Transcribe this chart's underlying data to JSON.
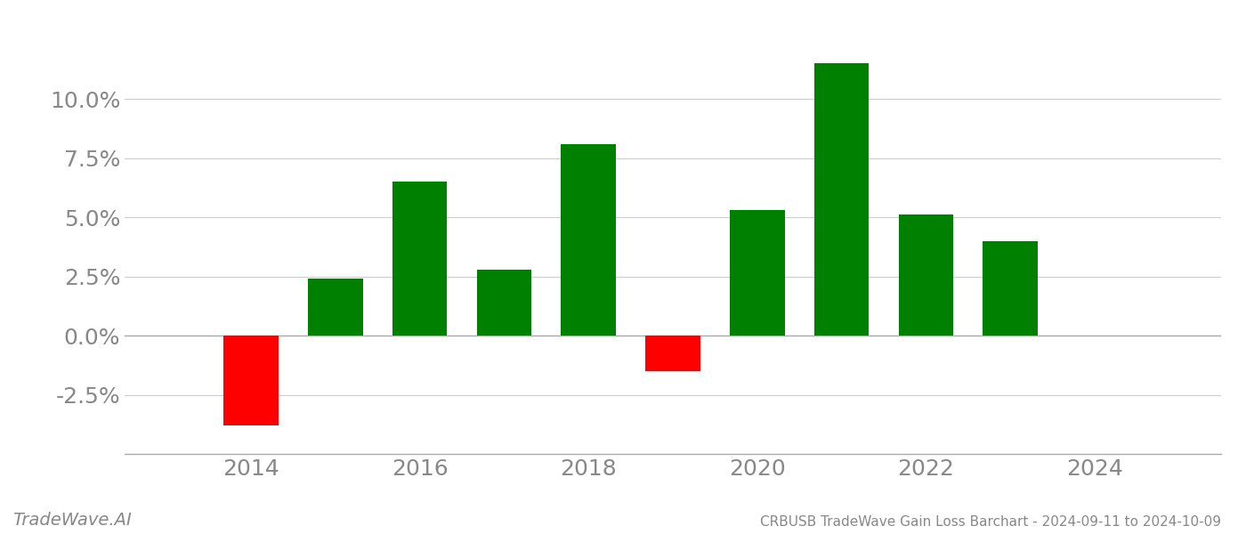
{
  "years": [
    2014,
    2015,
    2016,
    2017,
    2018,
    2019,
    2020,
    2021,
    2022,
    2023
  ],
  "values": [
    -0.038,
    0.024,
    0.065,
    0.028,
    0.081,
    -0.015,
    0.053,
    0.115,
    0.051,
    0.04
  ],
  "colors": [
    "#ff0000",
    "#008000",
    "#008000",
    "#008000",
    "#008000",
    "#ff0000",
    "#008000",
    "#008000",
    "#008000",
    "#008000"
  ],
  "title": "CRBUSB TradeWave Gain Loss Barchart - 2024-09-11 to 2024-10-09",
  "watermark": "TradeWave.AI",
  "ylim": [
    -0.05,
    0.135
  ],
  "yticks": [
    -0.025,
    0.0,
    0.025,
    0.05,
    0.075,
    0.1
  ],
  "xlim": [
    2012.5,
    2025.5
  ],
  "xticks": [
    2014,
    2016,
    2018,
    2020,
    2022,
    2024
  ],
  "background_color": "#ffffff",
  "grid_color": "#cccccc",
  "bar_width": 0.65,
  "tick_fontsize": 18,
  "title_fontsize": 11,
  "watermark_fontsize": 14
}
